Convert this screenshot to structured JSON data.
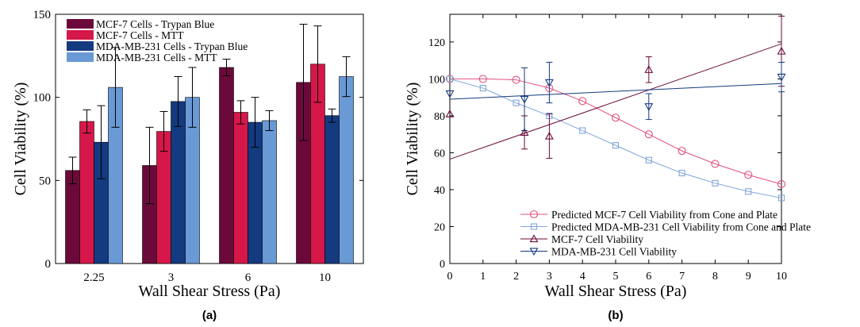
{
  "chart_data": [
    {
      "type": "bar",
      "caption": "(a)",
      "xlabel": "Wall Shear Stress (Pa)",
      "ylabel": "Cell Viability (%)",
      "ylim": [
        0,
        150
      ],
      "yticks": [
        0,
        50,
        100,
        150
      ],
      "categories": [
        "2.25",
        "3",
        "6",
        "10"
      ],
      "legend_position": "top-left",
      "error_bars": true,
      "series": [
        {
          "name": "MCF-7 Cells - Trypan Blue",
          "color": "#6b0a3a",
          "values": [
            56,
            59,
            118,
            109
          ],
          "errors": [
            8,
            23,
            5,
            35
          ]
        },
        {
          "name": "MCF-7 Cells - MTT",
          "color": "#d6174a",
          "values": [
            85.5,
            79.5,
            91,
            120
          ],
          "errors": [
            7,
            12,
            7,
            23
          ]
        },
        {
          "name": "MDA-MB-231 Cells - Trypan Blue",
          "color": "#143a80",
          "values": [
            73,
            97.5,
            85,
            89
          ],
          "errors": [
            22,
            15,
            15,
            4
          ]
        },
        {
          "name": "MDA-MB-231 Cells - MTT",
          "color": "#6a9ad6",
          "values": [
            106,
            100,
            86,
            112.5
          ],
          "errors": [
            24,
            18,
            6,
            12
          ]
        }
      ]
    },
    {
      "type": "line",
      "caption": "(b)",
      "xlabel": "Wall Shear Stress (Pa)",
      "ylabel": "Cell Viability (%)",
      "xlim": [
        0,
        10
      ],
      "ylim": [
        0,
        135
      ],
      "xticks": [
        0,
        1,
        2,
        3,
        4,
        5,
        6,
        7,
        8,
        9,
        10
      ],
      "yticks": [
        0,
        20,
        40,
        60,
        80,
        100,
        120
      ],
      "legend_position": "bottom-right",
      "series": [
        {
          "name": "Predicted MCF-7 Cell Viability from Cone and Plate",
          "color": "#e0507a",
          "marker": "circle",
          "line": true,
          "x": [
            0,
            1,
            2,
            3,
            4,
            5,
            6,
            7,
            8,
            9,
            10
          ],
          "y": [
            100,
            100,
            99.5,
            95,
            88,
            79,
            70,
            61,
            54,
            48,
            43
          ]
        },
        {
          "name": "Predicted MDA-MB-231 Cell Viability from Cone and Plate",
          "color": "#7fa6d8",
          "marker": "square",
          "line": true,
          "x": [
            0,
            1,
            2,
            3,
            4,
            5,
            6,
            7,
            8,
            9,
            10
          ],
          "y": [
            100,
            95,
            87,
            80,
            72,
            64,
            56,
            49,
            43.5,
            39,
            35.5
          ]
        },
        {
          "name": "MCF-7 Cell Viability",
          "color": "#6b0a3a",
          "marker": "triangle-up",
          "line": false,
          "x": [
            0,
            2.25,
            3,
            6,
            10
          ],
          "y": [
            81,
            71,
            69,
            105,
            115
          ],
          "errors": [
            0,
            9,
            12,
            7,
            19
          ],
          "fit": {
            "x": [
              0,
              10
            ],
            "y": [
              56.5,
              119
            ]
          }
        },
        {
          "name": "MDA-MB-231 Cell Viability",
          "color": "#143a80",
          "marker": "triangle-down",
          "line": false,
          "x": [
            0,
            2.25,
            3,
            6,
            10
          ],
          "y": [
            92,
            89,
            98,
            85,
            101
          ],
          "errors": [
            0,
            17,
            11,
            7,
            8
          ],
          "fit": {
            "x": [
              0,
              10
            ],
            "y": [
              89,
              97.5
            ]
          }
        }
      ]
    }
  ]
}
